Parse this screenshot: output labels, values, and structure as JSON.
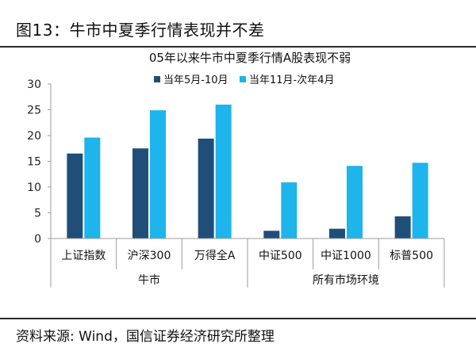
{
  "figure": {
    "heading": "图13：牛市中夏季行情表现并不差",
    "source": "资料来源: Wind，国信证券经济研究所整理"
  },
  "colors": {
    "series_1": "#1f4e79",
    "series_2": "#1eb4ec",
    "axis": "#9e9e9e",
    "rule": "#2a2a2a"
  },
  "chart_data": {
    "type": "bar",
    "title": "05年以来牛市中夏季行情A股表现不弱",
    "categories": [
      "上证指数",
      "沪深300",
      "万得全A",
      "中证500",
      "中证1000",
      "标普500"
    ],
    "category_groups": [
      {
        "label": "牛市",
        "categories": [
          "上证指数",
          "沪深300",
          "万得全A"
        ]
      },
      {
        "label": "所有市场环境",
        "categories": [
          "中证500",
          "中证1000",
          "标普500"
        ]
      }
    ],
    "series": [
      {
        "name": "当年5月-10月",
        "color": "#1f4e79",
        "values": [
          16.5,
          17.5,
          19.4,
          1.5,
          1.9,
          4.3
        ]
      },
      {
        "name": "当年11月-次年4月",
        "color": "#1eb4ec",
        "values": [
          19.6,
          24.9,
          26.0,
          10.9,
          14.1,
          14.7
        ]
      }
    ],
    "ylim": [
      0,
      30
    ],
    "yticks": [
      "0",
      "5",
      "10",
      "15",
      "20",
      "25",
      "30"
    ],
    "xlabel": "",
    "ylabel": "",
    "grid": false,
    "legend_position": "top"
  }
}
